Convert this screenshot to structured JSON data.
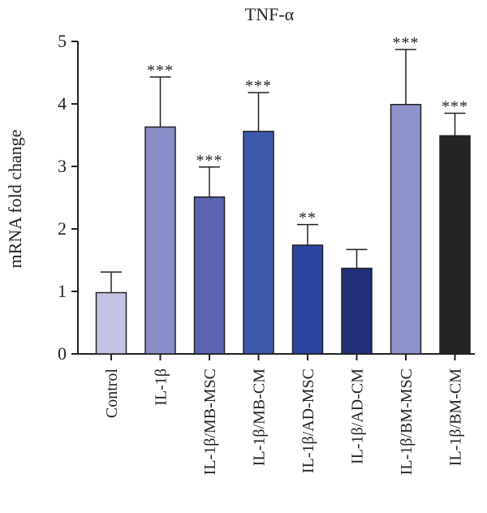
{
  "chart_data": {
    "type": "bar",
    "title": "TNF-α",
    "ylabel": "mRNA fold change",
    "xlabel": "",
    "ylim": [
      0,
      5
    ],
    "yticks": [
      0,
      1,
      2,
      3,
      4,
      5
    ],
    "grid": false,
    "categories": [
      "Control",
      "IL-1β",
      "IL-1β/MB-MSC",
      "IL-1β/MB-CM",
      "IL-1β/AD-MSC",
      "IL-1β/AD-CM",
      "IL-1β/BM-MSC",
      "IL-1β/BM-CM"
    ],
    "values": [
      0.98,
      3.63,
      2.51,
      3.56,
      1.74,
      1.37,
      3.99,
      3.49
    ],
    "errors": [
      0.33,
      0.8,
      0.48,
      0.62,
      0.33,
      0.3,
      0.88,
      0.36
    ],
    "significance": [
      "",
      "***",
      "***",
      "***",
      "**",
      "",
      "***",
      "***"
    ],
    "colors": [
      "#c3c3e4",
      "#8a8ec9",
      "#5a64b0",
      "#3b58aa",
      "#2a46a0",
      "#202f78",
      "#8e93cc",
      "#242424"
    ]
  }
}
